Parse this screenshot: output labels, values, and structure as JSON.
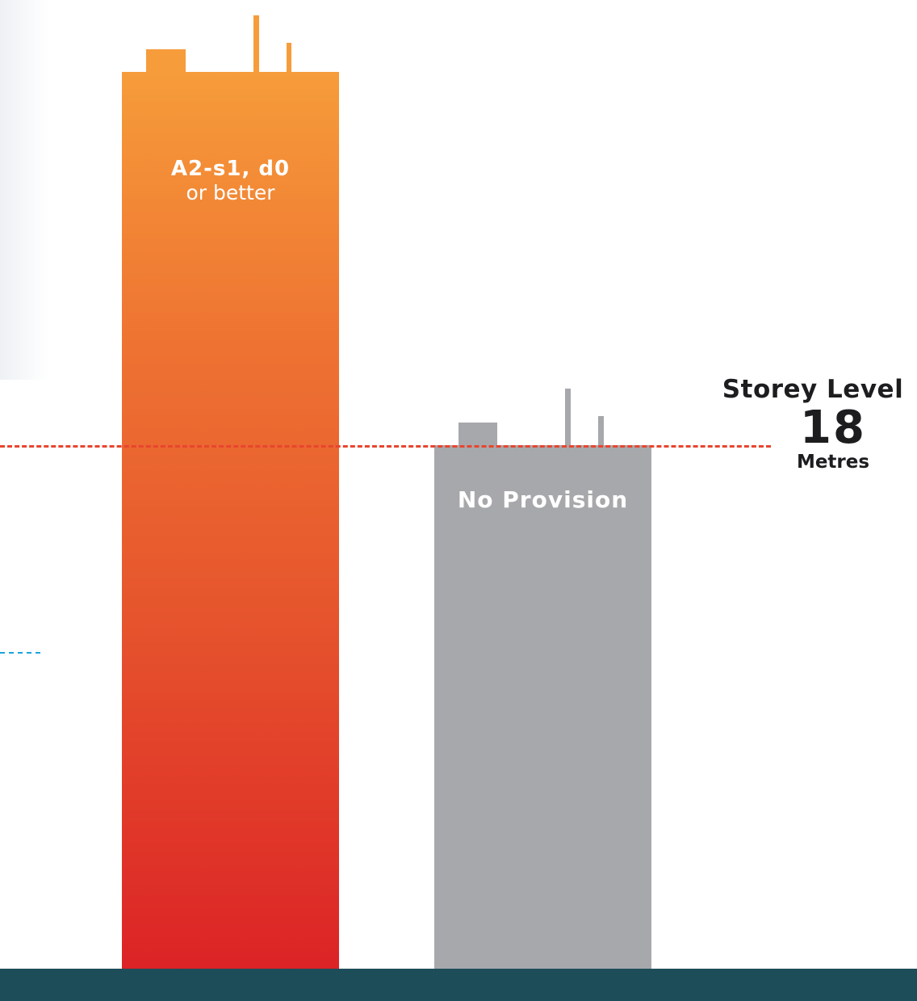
{
  "buildings": [
    {
      "label_strong": "A2-s1, d0",
      "label_sub": "or better",
      "color_top": "#f69c3a",
      "color_bottom": "#dc2326"
    },
    {
      "label": "No Provision",
      "color": "#a7a8ab"
    }
  ],
  "threshold": {
    "title": "Storey Level",
    "value": "18",
    "unit": "Metres",
    "line_color": "#e8452f"
  },
  "secondary_line_color": "#1aa4dc",
  "footer_color": "#1e4d5a"
}
